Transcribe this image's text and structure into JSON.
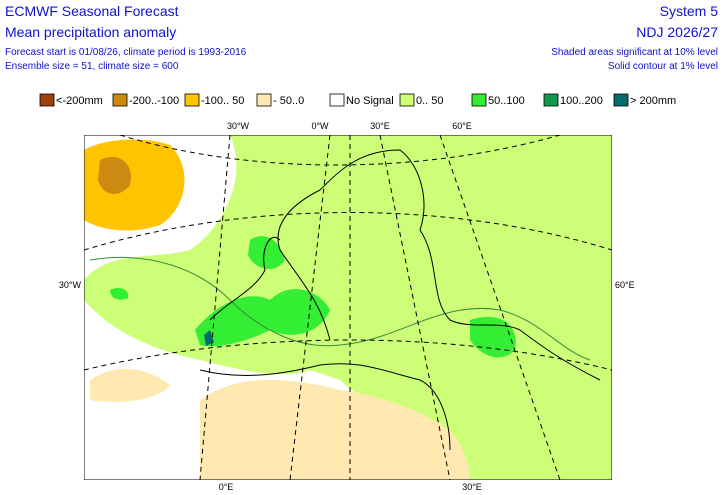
{
  "header": {
    "title": "ECMWF Seasonal Forecast",
    "subtitle": "Mean precipitation anomaly",
    "info": [
      "Forecast start is 01/08/26, climate period is 1993-2016",
      "Ensemble size = 51, climate size = 600"
    ],
    "system": "System 5",
    "period": "NDJ 2026/27",
    "notes": [
      "Shaded areas significant at 10% level",
      "Solid contour at 1% level"
    ]
  },
  "legend": [
    {
      "label": "<-200mm",
      "color": "#a0400a"
    },
    {
      "label": "-200..-100",
      "color": "#cc8a10"
    },
    {
      "label": "-100.. 50",
      "color": "#ffc400"
    },
    {
      "label": "- 50..0",
      "color": "#ffe9b0"
    },
    {
      "label": "No Signal",
      "color": "#ffffff"
    },
    {
      "label": "0.. 50",
      "color": "#ccff77"
    },
    {
      "label": "50..100",
      "color": "#33ee33"
    },
    {
      "label": "100..200",
      "color": "#11994a"
    },
    {
      "label": "> 200mm",
      "color": "#006b6b"
    }
  ],
  "map": {
    "labels": [
      "30°W",
      "0°W",
      "30°E",
      "60°E",
      "30°W",
      "60°E",
      "0°E",
      "30°E"
    ]
  }
}
